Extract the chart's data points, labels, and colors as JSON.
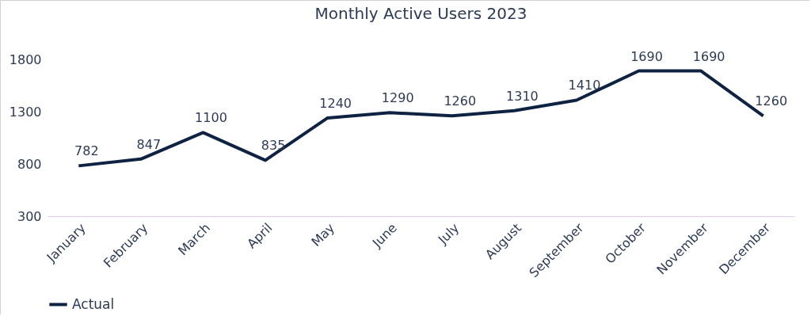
{
  "chart_data": {
    "type": "line",
    "title": "Monthly Active Users 2023",
    "categories": [
      "January",
      "February",
      "March",
      "April",
      "May",
      "June",
      "July",
      "August",
      "September",
      "October",
      "November",
      "December"
    ],
    "series": [
      {
        "name": "Actual",
        "color": "#0e2341",
        "values": [
          782,
          847,
          1100,
          835,
          1240,
          1290,
          1260,
          1310,
          1410,
          1690,
          1690,
          1260
        ]
      }
    ],
    "ylim": [
      300,
      1800
    ],
    "yticks": [
      300,
      800,
      1300,
      1800
    ],
    "grid": false,
    "legend": "bottom",
    "data_labels": true,
    "marker": "none",
    "line_style": "solid"
  }
}
